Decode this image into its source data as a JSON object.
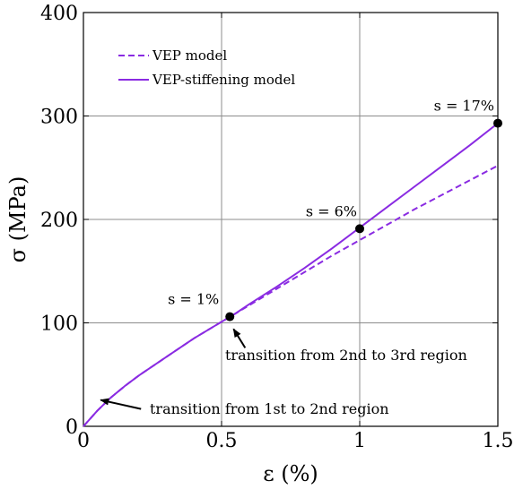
{
  "chart_data": {
    "type": "line",
    "xlabel": "ε (%)",
    "ylabel": "σ (MPa)",
    "xlim": [
      0,
      1.5
    ],
    "ylim": [
      0,
      400
    ],
    "xticks": [
      "0",
      "0.5",
      "1",
      "1.5"
    ],
    "yticks": [
      "0",
      "100",
      "200",
      "300",
      "400"
    ],
    "grid": true,
    "legend_position": "top-left",
    "colors": {
      "series": "#8a2be2"
    },
    "series": [
      {
        "name": "VEP model",
        "style": "dashed",
        "x": [
          0,
          0.05,
          0.1,
          0.15,
          0.2,
          0.3,
          0.4,
          0.5,
          0.55,
          0.6,
          0.7,
          0.8,
          0.9,
          1.0,
          1.1,
          1.2,
          1.3,
          1.4,
          1.5
        ],
        "y": [
          0,
          15,
          28,
          39,
          49,
          67,
          85,
          101,
          109,
          117,
          133,
          149,
          165,
          180,
          195,
          210,
          224,
          238,
          252
        ]
      },
      {
        "name": "VEP-stiffening model",
        "style": "solid",
        "x": [
          0,
          0.05,
          0.1,
          0.15,
          0.2,
          0.3,
          0.4,
          0.5,
          0.55,
          0.6,
          0.7,
          0.8,
          0.9,
          1.0,
          1.1,
          1.2,
          1.3,
          1.4,
          1.5
        ],
        "y": [
          0,
          15,
          28,
          39,
          49,
          67,
          85,
          101,
          109,
          118,
          135,
          153,
          172,
          192,
          212,
          232,
          252,
          272,
          293
        ]
      }
    ],
    "markers": [
      {
        "label": "s = 1%",
        "x": 0.53,
        "y": 106
      },
      {
        "label": "s = 6%",
        "x": 1.0,
        "y": 191
      },
      {
        "label": "s = 17%",
        "x": 1.5,
        "y": 293
      }
    ],
    "annotations": [
      {
        "text": "transition from 1st to 2nd region",
        "point_x": 0.03,
        "point_y": 22
      },
      {
        "text": "transition from 2nd to 3rd region",
        "point_x": 0.54,
        "point_y": 101
      }
    ]
  }
}
